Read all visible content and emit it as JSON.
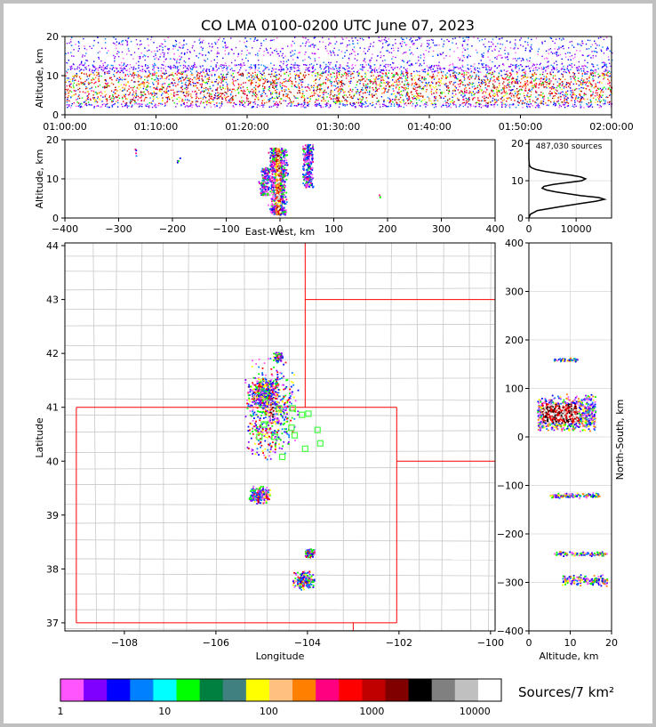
{
  "chart_data": [
    {
      "type": "scatter",
      "panel": "time-height",
      "title": "CO LMA 0100-0200 UTC June 07, 2023",
      "ylabel": "Altitude, km",
      "ylim": [
        0,
        20
      ],
      "yticks": [
        "0",
        "10",
        "20"
      ],
      "xticks": [
        "01:00:00",
        "01:10:00",
        "01:20:00",
        "01:30:00",
        "01:40:00",
        "01:50:00",
        "02:00:00"
      ],
      "xlim_minutes": [
        0,
        60
      ],
      "dense_band_km": [
        2,
        13
      ]
    },
    {
      "type": "scatter",
      "panel": "east-west-altitude",
      "xlabel": "East-West, km",
      "ylabel": "Altitude, km",
      "xlim": [
        -400,
        400
      ],
      "ylim": [
        0,
        20
      ],
      "xticks": [
        "−400",
        "−300",
        "−200",
        "−100",
        "0",
        "100",
        "200",
        "300",
        "400"
      ],
      "yticks": [
        "0",
        "10",
        "20"
      ]
    },
    {
      "type": "line",
      "panel": "altitude-histogram",
      "annotation": "487,030 sources",
      "xlim": [
        0,
        17500
      ],
      "ylim": [
        0,
        21
      ],
      "xticks": [
        "0",
        "10000"
      ],
      "yticks": [
        "0",
        "10",
        "20"
      ],
      "profile": [
        {
          "alt": 0,
          "count": 0
        },
        {
          "alt": 1,
          "count": 300
        },
        {
          "alt": 2,
          "count": 1800
        },
        {
          "alt": 3,
          "count": 6500
        },
        {
          "alt": 4,
          "count": 11500
        },
        {
          "alt": 4.5,
          "count": 14200
        },
        {
          "alt": 5,
          "count": 16000
        },
        {
          "alt": 5.5,
          "count": 14800
        },
        {
          "alt": 6,
          "count": 11000
        },
        {
          "alt": 7,
          "count": 5800
        },
        {
          "alt": 7.5,
          "count": 3800
        },
        {
          "alt": 8,
          "count": 2800
        },
        {
          "alt": 8.5,
          "count": 3200
        },
        {
          "alt": 9,
          "count": 5200
        },
        {
          "alt": 9.5,
          "count": 8200
        },
        {
          "alt": 10,
          "count": 11200
        },
        {
          "alt": 10.5,
          "count": 12000
        },
        {
          "alt": 11,
          "count": 11000
        },
        {
          "alt": 11.5,
          "count": 8800
        },
        {
          "alt": 12,
          "count": 6000
        },
        {
          "alt": 12.5,
          "count": 3400
        },
        {
          "alt": 13,
          "count": 1500
        },
        {
          "alt": 13.5,
          "count": 500
        },
        {
          "alt": 14,
          "count": 150
        },
        {
          "alt": 15,
          "count": 30
        },
        {
          "alt": 16,
          "count": 0
        },
        {
          "alt": 21,
          "count": 0
        }
      ]
    },
    {
      "type": "scatter",
      "panel": "plan-view",
      "xlabel": "Longitude",
      "ylabel": "Latitude",
      "xlim": [
        -109.3,
        -99.9
      ],
      "ylim": [
        36.85,
        44.05
      ],
      "xticks": [
        "−108",
        "−106",
        "−104",
        "−102",
        "−100"
      ],
      "yticks": [
        "37",
        "38",
        "39",
        "40",
        "41",
        "42",
        "43",
        "44"
      ],
      "stations": [
        {
          "lon": -104.62,
          "lat": 40.98
        },
        {
          "lon": -104.32,
          "lat": 40.98
        },
        {
          "lon": -104.12,
          "lat": 40.86
        },
        {
          "lon": -103.98,
          "lat": 40.88
        },
        {
          "lon": -104.95,
          "lat": 40.68
        },
        {
          "lon": -104.35,
          "lat": 40.62
        },
        {
          "lon": -103.78,
          "lat": 40.58
        },
        {
          "lon": -105.05,
          "lat": 40.45
        },
        {
          "lon": -104.72,
          "lat": 40.45
        },
        {
          "lon": -104.28,
          "lat": 40.48
        },
        {
          "lon": -103.72,
          "lat": 40.33
        },
        {
          "lon": -104.05,
          "lat": 40.23
        },
        {
          "lon": -104.55,
          "lat": 40.08
        }
      ],
      "storms": [
        {
          "lon": -104.8,
          "lat": 40.95,
          "weight": 5
        },
        {
          "lon": -104.95,
          "lat": 41.3,
          "weight": 3
        },
        {
          "lon": -105.05,
          "lat": 39.38,
          "weight": 2
        },
        {
          "lon": -104.1,
          "lat": 37.8,
          "weight": 2
        },
        {
          "lon": -103.95,
          "lat": 38.3,
          "weight": 1
        },
        {
          "lon": -104.65,
          "lat": 41.95,
          "weight": 1
        }
      ]
    },
    {
      "type": "scatter",
      "panel": "altitude-north-south",
      "xlabel": "Altitude, km",
      "ylabel": "North-South, km",
      "xlim": [
        0,
        20
      ],
      "ylim": [
        -400,
        400
      ],
      "xticks": [
        "0",
        "10",
        "20"
      ],
      "yticks": [
        "−400",
        "−300",
        "−200",
        "−100",
        "0",
        "100",
        "200",
        "300",
        "400"
      ]
    },
    {
      "type": "heatmap",
      "panel": "colorbar",
      "label": "Sources/7 km²",
      "ticks": [
        "1",
        "10",
        "100",
        "1000",
        "10000"
      ],
      "colors": [
        "#ff55ff",
        "#8000ff",
        "#0000ff",
        "#0080ff",
        "#00ffff",
        "#00ff00",
        "#008040",
        "#408080",
        "#ffff00",
        "#ffc080",
        "#ff8000",
        "#ff0080",
        "#ff0000",
        "#c00000",
        "#800000",
        "#000000",
        "#808080",
        "#c0c0c0",
        "#ffffff"
      ]
    }
  ]
}
